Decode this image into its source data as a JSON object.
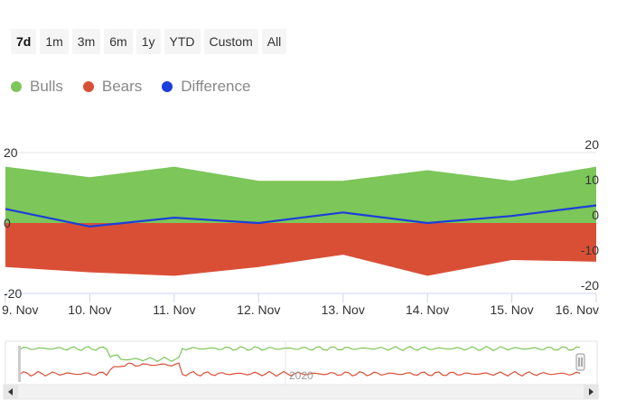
{
  "range_selector": {
    "buttons": [
      "7d",
      "1m",
      "3m",
      "6m",
      "1y",
      "YTD",
      "Custom",
      "All"
    ],
    "active": "7d"
  },
  "legend": [
    {
      "name": "Bulls",
      "color": "#7cc65a"
    },
    {
      "name": "Bears",
      "color": "#d94f36"
    },
    {
      "name": "Difference",
      "color": "#1c3fd9"
    }
  ],
  "chart_data": {
    "type": "area",
    "categories": [
      "9. Nov",
      "10. Nov",
      "11. Nov",
      "12. Nov",
      "13. Nov",
      "14. Nov",
      "15. Nov",
      "16. Nov"
    ],
    "series": [
      {
        "name": "Bulls",
        "type": "area",
        "color": "#7cc65a",
        "values": [
          16,
          13,
          16,
          12,
          12,
          15,
          12,
          16
        ]
      },
      {
        "name": "Bears",
        "type": "area",
        "color": "#d94f36",
        "values": [
          -12.5,
          -14,
          -15,
          -12.5,
          -9,
          -15,
          -10.5,
          -11
        ]
      },
      {
        "name": "Difference",
        "type": "line",
        "color": "#1c3fd9",
        "values": [
          4,
          -1,
          1.5,
          0,
          3,
          0,
          2,
          5
        ]
      }
    ],
    "y_left": {
      "ticks": [
        20,
        0,
        -20
      ],
      "range": [
        -20,
        20
      ]
    },
    "y_right": {
      "ticks": [
        20,
        10,
        0,
        -10,
        -20
      ],
      "range": [
        -20,
        20
      ]
    },
    "grid": true,
    "legend_position": "top-left"
  },
  "navigator": {
    "label": "2020"
  }
}
